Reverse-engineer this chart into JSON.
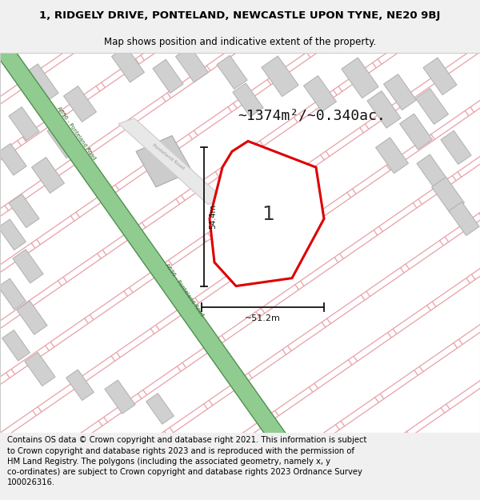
{
  "title_line1": "1, RIDGELY DRIVE, PONTELAND, NEWCASTLE UPON TYNE, NE20 9BJ",
  "title_line2": "Map shows position and indicative extent of the property.",
  "footer_text": "Contains OS data © Crown copyright and database right 2021. This information is subject to Crown copyright and database rights 2023 and is reproduced with the permission of HM Land Registry. The polygons (including the associated geometry, namely x, y co-ordinates) are subject to Crown copyright and database rights 2023 Ordnance Survey 100026316.",
  "area_label": "~1374m²/~0.340ac.",
  "number_label": "1",
  "dim_vertical": "54.4m",
  "dim_horizontal": "~51.2m",
  "bg_color": "#f0f0f0",
  "map_bg": "#ffffff",
  "road_green_color": "#90cc90",
  "road_green_border": "#509050",
  "road_label_color": "#2a6a2a",
  "property_color": "#dd0000",
  "property_fill": "#ffffff",
  "dim_color": "#111111",
  "title_fontsize": 9.5,
  "subtitle_fontsize": 8.5,
  "footer_fontsize": 7.2,
  "number_fontsize": 18,
  "area_fontsize": 13,
  "road_label_fontsize": 5.0
}
